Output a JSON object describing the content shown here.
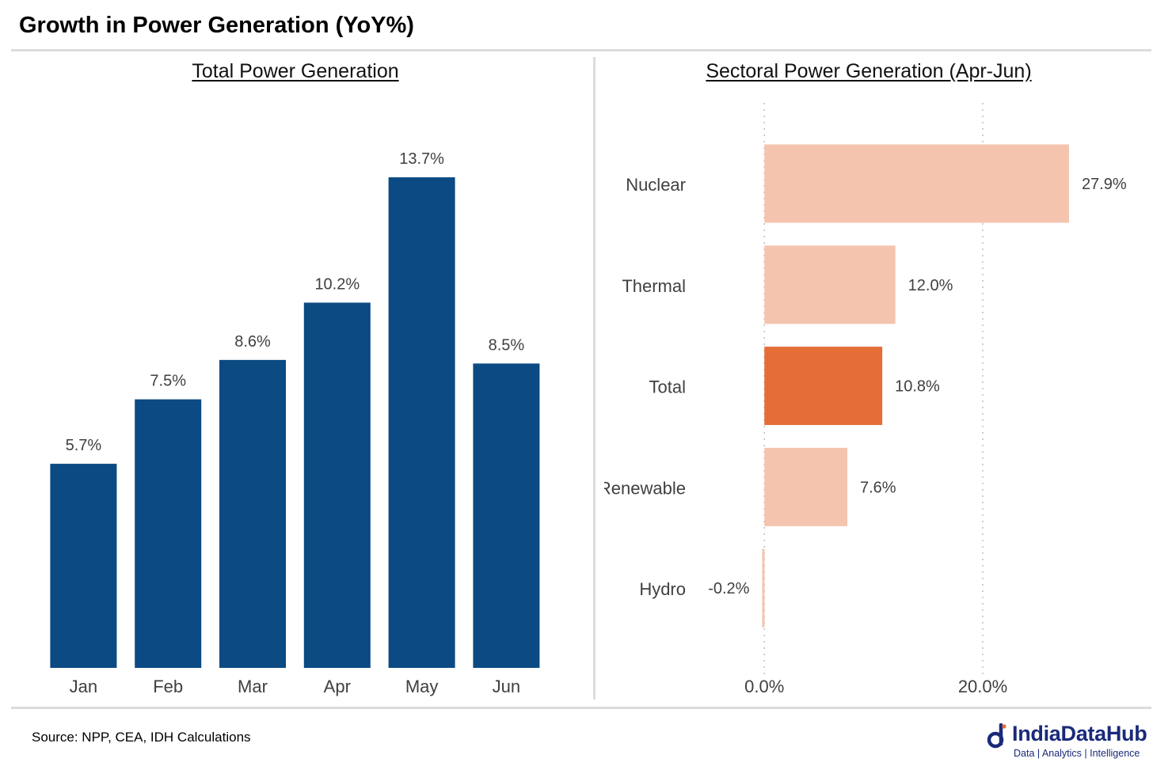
{
  "title": "Growth in Power Generation (YoY%)",
  "source": "Source: NPP, CEA, IDH Calculations",
  "logo": {
    "name": "IndiaDataHub",
    "tagline": "Data | Analytics | Intelligence"
  },
  "colors": {
    "bar_primary": "#0b4a82",
    "bar_highlight": "#e46d38",
    "bar_light": "#f4c4ae",
    "text": "#404040",
    "grid": "#bfbfbf",
    "logo": "#1a2a7a"
  },
  "chart_data": [
    {
      "type": "bar",
      "title": "Total Power Generation",
      "categories": [
        "Jan",
        "Feb",
        "Mar",
        "Apr",
        "May",
        "Jun"
      ],
      "values": [
        5.7,
        7.5,
        8.6,
        10.2,
        13.7,
        8.5
      ],
      "data_labels": [
        "5.7%",
        "7.5%",
        "8.6%",
        "10.2%",
        "13.7%",
        "8.5%"
      ],
      "ylim": [
        0,
        16
      ],
      "grid": false,
      "legend": "none"
    },
    {
      "type": "bar",
      "orientation": "horizontal",
      "title": "Sectoral Power Generation (Apr-Jun)",
      "categories": [
        "Nuclear",
        "Thermal",
        "Total",
        "Renewable",
        "Hydro"
      ],
      "values": [
        27.9,
        12.0,
        10.8,
        7.6,
        -0.2
      ],
      "data_labels": [
        "27.9%",
        "12.0%",
        "10.8%",
        "7.6%",
        "-0.2%"
      ],
      "highlight": "Total",
      "x_ticks": [
        "0.0%",
        "20.0%"
      ],
      "x_tick_values": [
        0,
        20
      ],
      "xlim": [
        -14.3,
        35.3
      ],
      "grid": true,
      "legend": "none"
    }
  ]
}
